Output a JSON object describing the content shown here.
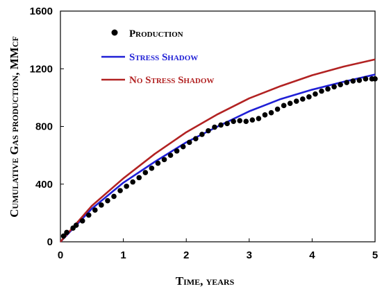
{
  "chart_data": {
    "type": "line",
    "xlabel": "Time, years",
    "ylabel": "Cumulative Gas production, MMcf",
    "xlim": [
      0,
      5
    ],
    "ylim": [
      0,
      1600
    ],
    "xticks": [
      "0",
      "1",
      "2",
      "3",
      "4",
      "5"
    ],
    "yticks": [
      "0",
      "400",
      "800",
      "1200",
      "1600"
    ],
    "grid": false,
    "legend_position": "top-left",
    "series": [
      {
        "name": "Production",
        "kind": "scatter",
        "color": "#000000",
        "x": [
          0.05,
          0.1,
          0.2,
          0.25,
          0.35,
          0.45,
          0.55,
          0.65,
          0.75,
          0.85,
          0.95,
          1.05,
          1.15,
          1.25,
          1.35,
          1.45,
          1.55,
          1.65,
          1.75,
          1.85,
          1.95,
          2.05,
          2.15,
          2.25,
          2.35,
          2.45,
          2.55,
          2.65,
          2.75,
          2.85,
          2.95,
          3.05,
          3.15,
          3.25,
          3.35,
          3.45,
          3.55,
          3.65,
          3.75,
          3.85,
          3.95,
          4.05,
          4.15,
          4.25,
          4.35,
          4.45,
          4.55,
          4.65,
          4.75,
          4.85,
          4.95,
          5.0
        ],
        "y": [
          40,
          65,
          95,
          115,
          145,
          185,
          220,
          255,
          285,
          315,
          355,
          385,
          415,
          445,
          480,
          510,
          545,
          570,
          600,
          630,
          660,
          690,
          715,
          745,
          770,
          795,
          810,
          820,
          835,
          840,
          835,
          845,
          855,
          880,
          895,
          920,
          945,
          960,
          975,
          990,
          1005,
          1025,
          1045,
          1060,
          1075,
          1090,
          1105,
          1115,
          1120,
          1130,
          1130,
          1130
        ]
      },
      {
        "name": "Stress Shadow",
        "kind": "line",
        "color": "#1f1fd6",
        "x": [
          0,
          0.5,
          1,
          1.5,
          2,
          2.5,
          3,
          3.5,
          4,
          4.5,
          5
        ],
        "y": [
          0,
          230,
          410,
          555,
          690,
          800,
          905,
          990,
          1055,
          1110,
          1160
        ]
      },
      {
        "name": "No Stress Shadow",
        "kind": "line",
        "color": "#b22222",
        "x": [
          0,
          0.5,
          1,
          1.5,
          2,
          2.5,
          3,
          3.5,
          4,
          4.5,
          5
        ],
        "y": [
          0,
          250,
          440,
          610,
          760,
          885,
          995,
          1080,
          1155,
          1215,
          1265
        ]
      }
    ]
  }
}
